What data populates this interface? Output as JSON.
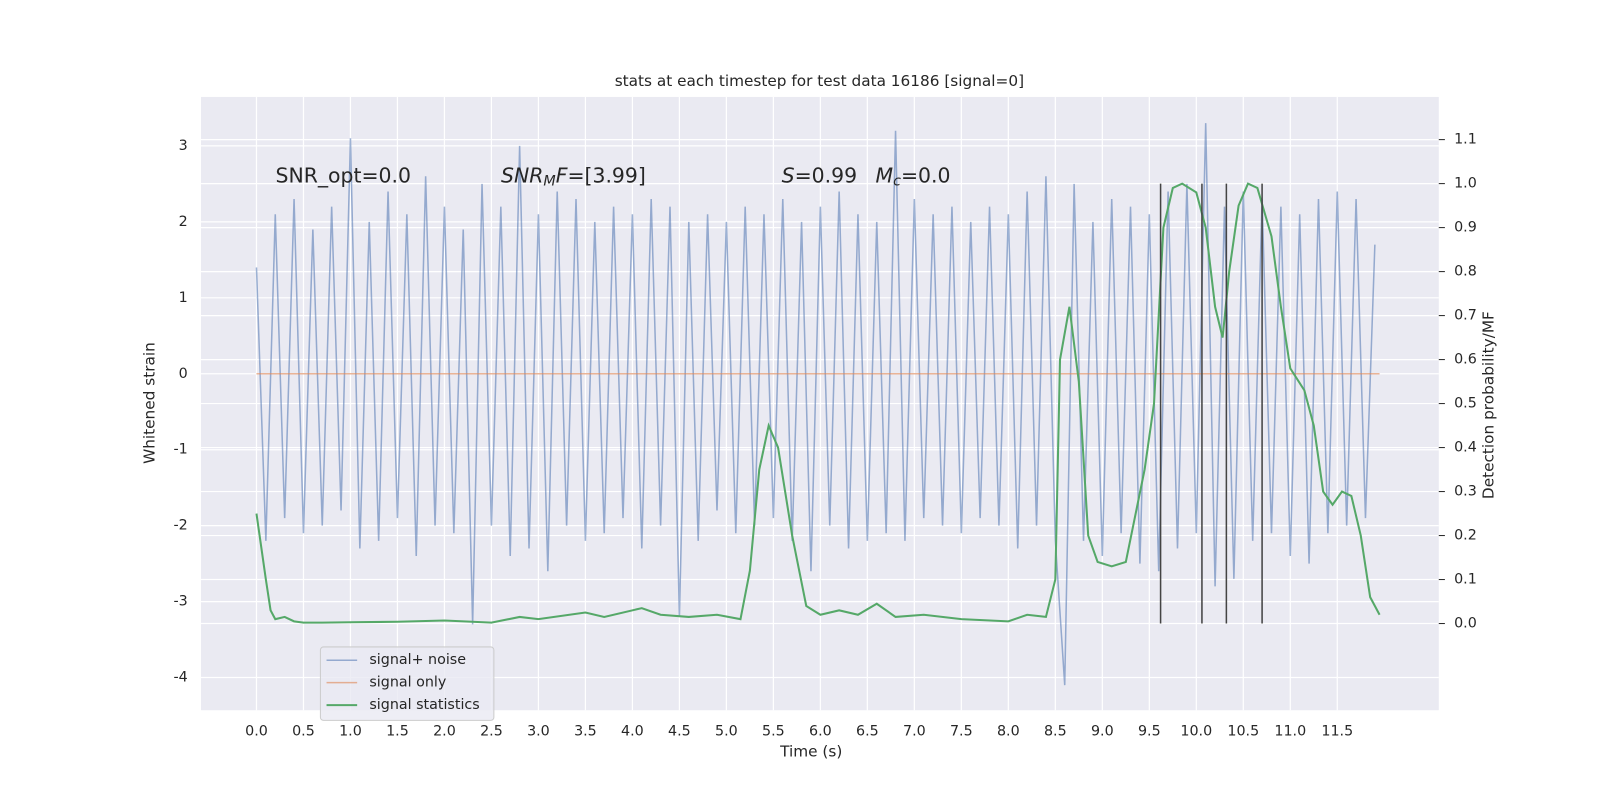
{
  "chart_data": {
    "type": "line",
    "title": "stats at each timestep for test data 16186 [signal=0]",
    "xlabel": "Time (s)",
    "ylabel": "Whitened strain",
    "y2label": "Detection probability/MF",
    "xlim": [
      -0.59,
      12.58
    ],
    "ylim": [
      -4.43,
      3.645
    ],
    "y2lim": [
      -0.197,
      1.197
    ],
    "xticks": [
      {
        "value": 0,
        "label": "0.0"
      },
      0.5,
      {
        "value": 1,
        "label": "1.0"
      },
      1.5,
      {
        "value": 2,
        "label": "2.0"
      },
      2.5,
      {
        "value": 3,
        "label": "3.0"
      },
      3.5,
      {
        "value": 4,
        "label": "4.0"
      },
      4.5,
      {
        "value": 5,
        "label": "5.0"
      },
      5.5,
      {
        "value": 6,
        "label": "6.0"
      },
      6.5,
      {
        "value": 7,
        "label": "7.0"
      },
      7.5,
      {
        "value": 8,
        "label": "8.0"
      },
      8.5,
      {
        "value": 9,
        "label": "9.0"
      },
      9.5,
      {
        "value": 10,
        "label": "10.0"
      },
      10.5,
      {
        "value": 11,
        "label": "11.0"
      },
      11.5
    ],
    "yticks": [
      -4,
      -3,
      -2,
      -1,
      0,
      1,
      2,
      3
    ],
    "y2ticks": [
      {
        "value": 0,
        "label": "0.0"
      },
      0.1,
      0.2,
      0.3,
      0.4,
      0.5,
      0.6,
      0.7,
      0.8,
      0.9,
      {
        "value": 1,
        "label": "1.0"
      },
      1.1
    ],
    "grid": true,
    "legend": "lower left",
    "series": [
      {
        "name": "signal+ noise",
        "color": "#4c72b0",
        "x": [
          0,
          0.1,
          0.2,
          0.3,
          0.4,
          0.5,
          0.6,
          0.7,
          0.8,
          0.9,
          1,
          1.1,
          1.2,
          1.3,
          1.4,
          1.5,
          1.6,
          1.7,
          1.8,
          1.9,
          2,
          2.1,
          2.2,
          2.3,
          2.4,
          2.5,
          2.6,
          2.7,
          2.8,
          2.9,
          3,
          3.1,
          3.2,
          3.3,
          3.4,
          3.5,
          3.6,
          3.7,
          3.8,
          3.9,
          4,
          4.1,
          4.2,
          4.3,
          4.4,
          4.5,
          4.6,
          4.7,
          4.8,
          4.9,
          5,
          5.1,
          5.2,
          5.3,
          5.4,
          5.5,
          5.6,
          5.7,
          5.8,
          5.9,
          6,
          6.1,
          6.2,
          6.3,
          6.4,
          6.5,
          6.6,
          6.7,
          6.8,
          6.9,
          7,
          7.1,
          7.2,
          7.3,
          7.4,
          7.5,
          7.6,
          7.7,
          7.8,
          7.9,
          8,
          8.1,
          8.2,
          8.3,
          8.4,
          8.5,
          8.6,
          8.7,
          8.8,
          8.9,
          9,
          9.1,
          9.2,
          9.3,
          9.4,
          9.5,
          9.6,
          9.7,
          9.8,
          9.9,
          10,
          10.1,
          10.2,
          10.3,
          10.4,
          10.5,
          10.6,
          10.7,
          10.8,
          10.9,
          11,
          11.1,
          11.2,
          11.3,
          11.4,
          11.5,
          11.6,
          11.7,
          11.8,
          11.9
        ],
        "values": [
          1.4,
          -2.2,
          2.1,
          -1.9,
          2.3,
          -2.1,
          1.9,
          -2.0,
          2.2,
          -1.8,
          3.1,
          -2.3,
          2.0,
          -2.2,
          2.4,
          -1.9,
          2.1,
          -2.4,
          2.6,
          -2.0,
          2.2,
          -2.1,
          1.9,
          -3.3,
          2.5,
          -2.0,
          2.2,
          -2.4,
          3.0,
          -2.3,
          2.1,
          -2.6,
          2.4,
          -2.0,
          2.3,
          -2.2,
          2.0,
          -2.1,
          2.2,
          -1.9,
          2.1,
          -2.3,
          2.3,
          -2.0,
          2.2,
          -3.2,
          2.0,
          -2.2,
          2.1,
          -1.8,
          2.0,
          -2.1,
          2.2,
          -2.0,
          2.1,
          -1.9,
          2.3,
          -2.2,
          2.0,
          -2.6,
          2.2,
          -2.0,
          2.4,
          -2.3,
          2.1,
          -2.2,
          2.0,
          -2.1,
          3.2,
          -2.2,
          2.3,
          -1.9,
          2.1,
          -2.0,
          2.2,
          -2.1,
          2.0,
          -1.9,
          2.2,
          -2.0,
          2.1,
          -2.3,
          2.4,
          -2.0,
          2.6,
          -2.2,
          -4.1,
          2.5,
          -2.2,
          2.0,
          -2.4,
          2.3,
          -2.1,
          2.2,
          -2.5,
          2.1,
          -2.6,
          2.4,
          -2.3,
          2.5,
          -2.1,
          3.3,
          -2.8,
          2.2,
          -2.7,
          2.4,
          -2.2,
          2.3,
          -2.1,
          2.2,
          -2.4,
          2.1,
          -2.5,
          2.3,
          -2.1,
          2.4,
          -2.0,
          2.3,
          -1.9,
          1.7
        ]
      },
      {
        "name": "signal only",
        "color": "#dd8452",
        "x": [
          0,
          11.95
        ],
        "values": [
          0,
          0
        ]
      },
      {
        "name": "signal statistics",
        "color": "#55a868",
        "axis": "y2",
        "x": [
          0,
          0.1,
          0.15,
          0.2,
          0.3,
          0.4,
          0.5,
          0.7,
          1.0,
          1.5,
          2.0,
          2.5,
          2.8,
          3.0,
          3.5,
          3.7,
          4.1,
          4.3,
          4.6,
          4.9,
          5.15,
          5.25,
          5.35,
          5.45,
          5.55,
          5.7,
          5.85,
          6.0,
          6.2,
          6.4,
          6.6,
          6.8,
          7.1,
          7.5,
          8.0,
          8.2,
          8.4,
          8.5,
          8.55,
          8.65,
          8.75,
          8.85,
          8.95,
          9.1,
          9.25,
          9.45,
          9.55,
          9.65,
          9.75,
          9.85,
          10.0,
          10.1,
          10.2,
          10.28,
          10.35,
          10.45,
          10.55,
          10.65,
          10.8,
          10.9,
          11.0,
          11.15,
          11.25,
          11.35,
          11.45,
          11.55,
          11.65,
          11.75,
          11.85,
          11.95
        ],
        "values": [
          0.25,
          0.1,
          0.03,
          0.01,
          0.015,
          0.005,
          0.002,
          0.002,
          0.003,
          0.004,
          0.007,
          0.002,
          0.015,
          0.01,
          0.025,
          0.015,
          0.035,
          0.02,
          0.015,
          0.02,
          0.01,
          0.12,
          0.35,
          0.45,
          0.4,
          0.2,
          0.04,
          0.02,
          0.03,
          0.02,
          0.045,
          0.015,
          0.02,
          0.01,
          0.005,
          0.02,
          0.015,
          0.1,
          0.6,
          0.72,
          0.55,
          0.2,
          0.14,
          0.13,
          0.14,
          0.35,
          0.5,
          0.9,
          0.99,
          1.0,
          0.98,
          0.9,
          0.72,
          0.65,
          0.8,
          0.95,
          1.0,
          0.99,
          0.88,
          0.72,
          0.58,
          0.53,
          0.45,
          0.3,
          0.27,
          0.3,
          0.29,
          0.2,
          0.06,
          0.02
        ]
      }
    ],
    "vlines": {
      "color": "#444444",
      "x": [
        9.62,
        10.06,
        10.32,
        10.7
      ],
      "y2": [
        0,
        1.0
      ]
    },
    "annotations": [
      {
        "parts": [
          {
            "text": "SNR_opt=0.0"
          }
        ]
      },
      {
        "parts": [
          {
            "text": "SNR",
            "italic": true
          },
          {
            "text": "M",
            "italic": true,
            "sub": true
          },
          {
            "text": "F",
            "italic": true
          },
          {
            "text": "=[3.99]"
          }
        ]
      },
      {
        "parts": [
          {
            "text": "S",
            "italic": true
          },
          {
            "text": "=0.99"
          }
        ]
      },
      {
        "parts": [
          {
            "text": "M",
            "italic": true
          },
          {
            "text": "c",
            "italic": true,
            "sub": true
          },
          {
            "text": "=0.0"
          }
        ]
      }
    ]
  }
}
